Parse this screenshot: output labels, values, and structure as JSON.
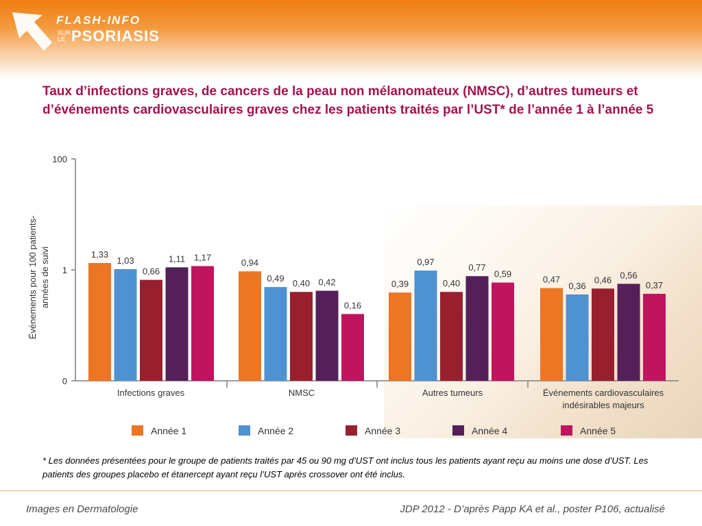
{
  "header": {
    "logo_line1": "FLASH-INFO",
    "logo_sur": "SUR",
    "logo_le": "LE",
    "logo_line2": "PSORIASIS"
  },
  "title": "Taux d’infections graves, de cancers de la peau non mélanomateux (NMSC), d’autres tumeurs et d’événements cardiovasculaires graves chez les patients traités par l’UST* de l’année 1 à l’année 5",
  "footnote": "* Les données présentées pour le groupe de patients traités par 45 ou 90 mg d’UST ont inclus tous les patients ayant reçu au moins une dose d’UST. Les patients des groupes placebo et étanercept ayant reçu l’UST après crossover ont été inclus.",
  "footer": {
    "left": "Images en Dermatologie",
    "right": "JDP 2012 - D’après Papp KA et al., poster P106, actualisé"
  },
  "colors": {
    "accent": "#a3124f",
    "header_orange": "#ef7d12"
  },
  "chart_data": {
    "type": "bar",
    "ylabel": "Événements pour 100 patients-années de suivi",
    "yscale": "log",
    "yticks": [
      "100",
      "1",
      "0"
    ],
    "categories": [
      "Infections graves",
      "NMSC",
      "Autres tumeurs",
      "Événements cardiovasculaires indésirables majeurs"
    ],
    "category_lines": [
      [
        "Infections graves"
      ],
      [
        "NMSC"
      ],
      [
        "Autres tumeurs"
      ],
      [
        "Événements cardiovasculaires",
        "indésirables majeurs"
      ]
    ],
    "series": [
      {
        "name": "Année 1",
        "color": "#ec7624",
        "values": [
          1.33,
          0.94,
          0.39,
          0.47
        ],
        "labels": [
          "1,33",
          "0,94",
          "0,39",
          "0,47"
        ]
      },
      {
        "name": "Année 2",
        "color": "#4f92d1",
        "values": [
          1.03,
          0.49,
          0.97,
          0.36
        ],
        "labels": [
          "1,03",
          "0,49",
          "0,97",
          "0,36"
        ]
      },
      {
        "name": "Année 3",
        "color": "#98202e",
        "values": [
          0.66,
          0.4,
          0.4,
          0.46
        ],
        "labels": [
          "0,66",
          "0,40",
          "0,40",
          "0,46"
        ]
      },
      {
        "name": "Année 4",
        "color": "#55205a",
        "values": [
          1.11,
          0.42,
          0.77,
          0.56
        ],
        "labels": [
          "1,11",
          "0,42",
          "0,77",
          "0,56"
        ]
      },
      {
        "name": "Année 5",
        "color": "#c0145f",
        "values": [
          1.17,
          0.16,
          0.59,
          0.37
        ],
        "labels": [
          "1,17",
          "0,16",
          "0,59",
          "0,37"
        ]
      }
    ],
    "legend_position": "bottom",
    "grid": false
  }
}
